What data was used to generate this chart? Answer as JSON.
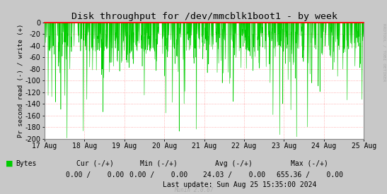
{
  "title": "Disk throughput for /dev/mmcblk1boot1 - by week",
  "ylabel": "Pr second read (-) / write (+)",
  "sidebar_text": "RRDTOOL / TOBI OETIKER",
  "ylim": [
    -200,
    0
  ],
  "yticks": [
    0,
    -20,
    -40,
    -60,
    -80,
    -100,
    -120,
    -140,
    -160,
    -180,
    -200
  ],
  "xticklabels": [
    "17 Aug",
    "18 Aug",
    "19 Aug",
    "20 Aug",
    "21 Aug",
    "22 Aug",
    "23 Aug",
    "24 Aug",
    "25 Aug"
  ],
  "bg_color": "#c8c8c8",
  "plot_bg_color": "#ffffff",
  "grid_color": "#ff9999",
  "line_color": "#00cc00",
  "spine_top_color": "#ff0000",
  "spine_color": "#aaaaaa",
  "title_fontsize": 9.5,
  "axis_fontsize": 6.5,
  "tick_fontsize": 7,
  "legend_label": "Bytes",
  "legend_color": "#00cc00",
  "footer_label_cur": "Cur (-/+)",
  "footer_label_min": "Min (-/+)",
  "footer_label_avg": "Avg (-/+)",
  "footer_label_max": "Max (-/+)",
  "footer_val_cur": "0.00 /    0.00",
  "footer_val_min": "0.00 /    0.00",
  "footer_val_avg": "24.03 /    0.00",
  "footer_val_max": "655.36 /    0.00",
  "footer_lastupdate": "Last update: Sun Aug 25 15:35:00 2024",
  "munin_version": "Munin 2.0.67"
}
